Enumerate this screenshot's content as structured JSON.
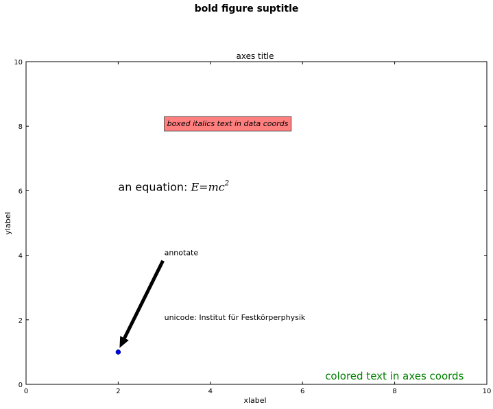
{
  "suptitle": "bold figure suptitle",
  "chart_data": {
    "type": "scatter",
    "title": "axes title",
    "xlabel": "xlabel",
    "ylabel": "ylabel",
    "xlim": [
      0,
      10
    ],
    "ylim": [
      0,
      10
    ],
    "xticks": [
      "0",
      "2",
      "4",
      "6",
      "8",
      "10"
    ],
    "yticks": [
      "0",
      "2",
      "4",
      "6",
      "8",
      "10"
    ],
    "grid": false,
    "series": [
      {
        "x": [
          2
        ],
        "y": [
          1
        ],
        "color": "#0000ff"
      }
    ],
    "annotations": {
      "boxed": {
        "text": "boxed italics text in data coords",
        "x": 3,
        "y": 8,
        "facecolor": "#ff7f7f",
        "style": "italic"
      },
      "equation": {
        "prefix": "an equation: ",
        "math": "E=mc",
        "sup": "2",
        "x": 2,
        "y": 6
      },
      "arrow": {
        "text": "annotate",
        "text_x": 3,
        "text_y": 4,
        "target_x": 2,
        "target_y": 1,
        "color": "#000000"
      },
      "unicode": {
        "text": "unicode: Institut für Festkörperphysik",
        "x": 3,
        "y": 2
      },
      "colored": {
        "text": "colored text in axes coords",
        "color": "#008000",
        "position": "bottom-right"
      }
    }
  }
}
